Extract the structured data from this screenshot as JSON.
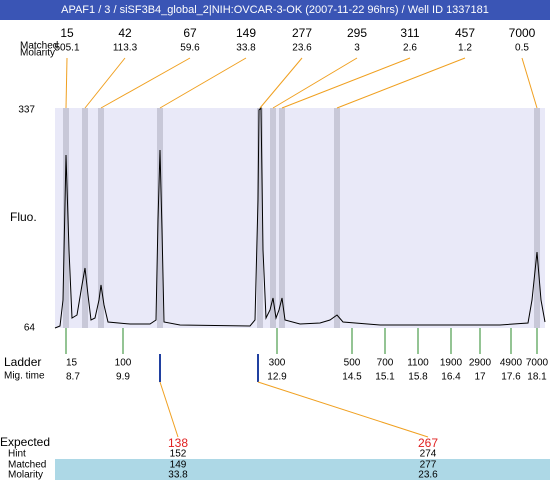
{
  "header": {
    "title": "APAF1 / 3 / siSF3B4_global_2|NIH:OVCAR-3-OK (2007-11-22 96hrs) / Well ID 1337181"
  },
  "peaks": {
    "size_label": "Matched",
    "molarity_label": "Molarity",
    "sizes": [
      15,
      42,
      67,
      149,
      277,
      295,
      311,
      457,
      7000
    ],
    "molarities": [
      505.1,
      113.3,
      59.6,
      33.8,
      23.6,
      3,
      2.6,
      1.2,
      0.5
    ]
  },
  "axis": {
    "top": "337",
    "bottom": "64",
    "label": "Fluo."
  },
  "ladder": {
    "label": "Ladder",
    "time_label": "Mig. time",
    "sizes": [
      15,
      100,
      300,
      500,
      700,
      1100,
      1900,
      2900,
      4900,
      7000
    ],
    "times": [
      8.7,
      9.9,
      12.9,
      14.5,
      15.1,
      15.8,
      16.4,
      17,
      17.6,
      18.1
    ]
  },
  "expected": {
    "labels": [
      "Expected",
      "Hint",
      "Matched",
      "Molarity"
    ],
    "columns": [
      {
        "expected": 138,
        "hint": 152,
        "matched": 149,
        "molarity": 33.8
      },
      {
        "expected": 267,
        "hint": 274,
        "matched": 277,
        "molarity": 23.6
      }
    ]
  }
}
